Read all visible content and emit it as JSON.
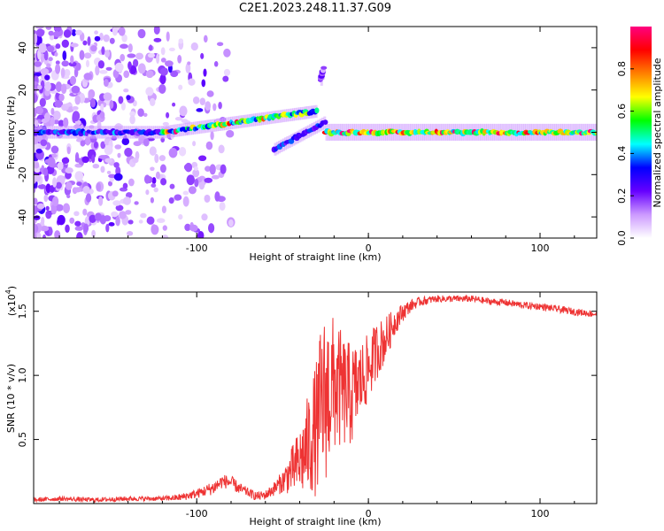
{
  "figure": {
    "title": "C2E1.2023.248.11.37.G09"
  },
  "chart_data": [
    {
      "type": "heatmap",
      "xlabel": "Height of straight line (km)",
      "ylabel": "Frequency (Hz)",
      "xlim": [
        -195,
        133
      ],
      "ylim": [
        -50,
        50
      ],
      "xticks": [
        -100,
        0,
        100
      ],
      "yticks": [
        -40,
        -20,
        0,
        20,
        40
      ],
      "grid": false,
      "colorbar": {
        "label": "Normalized spectral amplitude",
        "range": [
          0,
          1
        ],
        "ticks": [
          "0.0",
          "0.2",
          "0.4",
          "0.6",
          "0.8"
        ],
        "colormap": [
          "#ffffff",
          "#cc99ff",
          "#6600ff",
          "#0000ff",
          "#00ffff",
          "#00ff00",
          "#ffff00",
          "#ff8000",
          "#ff0000",
          "#ff0080"
        ]
      },
      "features": [
        {
          "name": "main-band-left",
          "x": [
            -195,
            -120
          ],
          "frequency": 0,
          "amplitude": 0.3
        },
        {
          "name": "rising-arc",
          "x": [
            -120,
            -30
          ],
          "frequency_start": 0,
          "frequency_end": 10,
          "amplitude": 0.45
        },
        {
          "name": "main-band-right",
          "x": [
            -25,
            133
          ],
          "frequency": 0,
          "amplitude": 0.55
        },
        {
          "name": "descending-branch",
          "x": [
            -55,
            -25
          ],
          "frequency_start": -8,
          "frequency_end": 5,
          "amplitude": 0.3
        },
        {
          "name": "upper-spur",
          "x": [
            -28,
            -26
          ],
          "frequency_start": 25,
          "frequency_end": 30,
          "amplitude": 0.2
        },
        {
          "name": "scatter-noise",
          "x": [
            -195,
            -80
          ],
          "frequency": [
            -50,
            50
          ],
          "amplitude": 0.15
        }
      ]
    },
    {
      "type": "line",
      "xlabel": "Height of straight line (km)",
      "ylabel": "SNR (10 * v/v)",
      "y_multiplier_label": "(x10",
      "y_multiplier_exp": "4",
      "y_multiplier_close": ")",
      "xlim": [
        -195,
        133
      ],
      "ylim": [
        0,
        1.65
      ],
      "xticks": [
        -100,
        0,
        100
      ],
      "yticks": [
        "0.5",
        "1.0",
        "1.5"
      ],
      "grid": false,
      "series": [
        {
          "color": "#ee3333",
          "x": [
            -195,
            -180,
            -160,
            -140,
            -120,
            -110,
            -100,
            -90,
            -85,
            -80,
            -75,
            -70,
            -65,
            -60,
            -55,
            -50,
            -45,
            -40,
            -35,
            -30,
            -28,
            -25,
            -22,
            -20,
            -15,
            -10,
            -5,
            0,
            5,
            10,
            15,
            20,
            25,
            30,
            40,
            50,
            60,
            70,
            80,
            90,
            100,
            110,
            120,
            133
          ],
          "y": [
            0.03,
            0.04,
            0.03,
            0.04,
            0.04,
            0.05,
            0.08,
            0.13,
            0.18,
            0.17,
            0.12,
            0.09,
            0.06,
            0.07,
            0.12,
            0.18,
            0.27,
            0.35,
            0.5,
            0.65,
            0.8,
            0.9,
            0.95,
            0.98,
            0.92,
            0.88,
            0.98,
            1.08,
            1.22,
            1.3,
            1.42,
            1.5,
            1.55,
            1.58,
            1.6,
            1.6,
            1.6,
            1.58,
            1.57,
            1.55,
            1.54,
            1.52,
            1.5,
            1.48
          ],
          "noise_amplitude": [
            0.02,
            0.02,
            0.02,
            0.02,
            0.02,
            0.03,
            0.04,
            0.06,
            0.06,
            0.06,
            0.05,
            0.04,
            0.04,
            0.04,
            0.06,
            0.1,
            0.2,
            0.3,
            0.45,
            0.6,
            0.7,
            0.75,
            0.65,
            0.6,
            0.5,
            0.45,
            0.35,
            0.3,
            0.25,
            0.2,
            0.12,
            0.08,
            0.05,
            0.04,
            0.03,
            0.03,
            0.03,
            0.03,
            0.03,
            0.03,
            0.03,
            0.03,
            0.03,
            0.03
          ]
        }
      ]
    }
  ]
}
